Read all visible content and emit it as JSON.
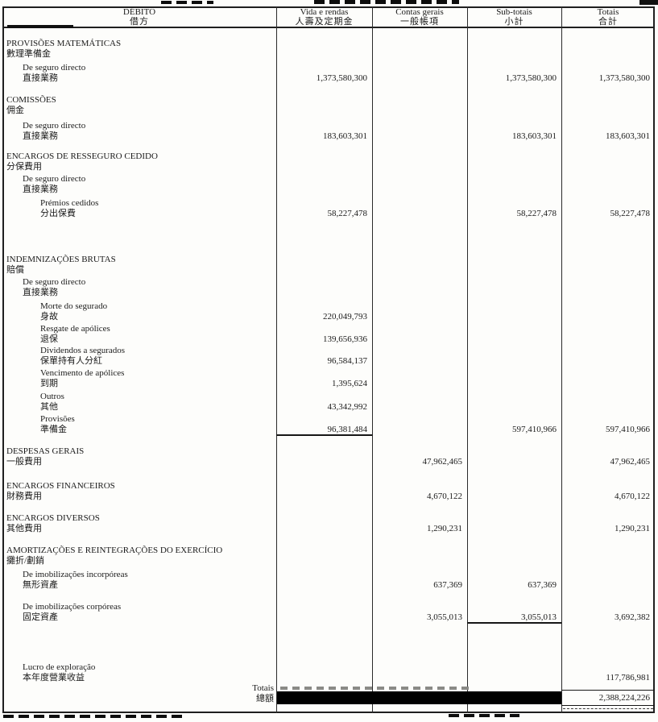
{
  "document": {
    "title": "Conta de exploração - Débito (scanned bilingual insurance account statement)",
    "colors": {
      "ink": "#1b1b1b",
      "redaction": "#000000",
      "paper": "#fdfdfb"
    },
    "header": {
      "col_debit": {
        "pt": "DÉBITO",
        "zh": "借方"
      },
      "columns": [
        {
          "key": "vida",
          "pt": "Vida e rendas",
          "zh": "人壽及定期金"
        },
        {
          "key": "contas",
          "pt": "Contas gerais",
          "zh": "一般帳項"
        },
        {
          "key": "sub",
          "pt": "Sub-totais",
          "zh": "小計"
        },
        {
          "key": "total",
          "pt": "Totais",
          "zh": "合計"
        }
      ]
    },
    "rows": [
      {
        "pt": "PROVISÕES MATEMÁTICAS",
        "zh": "數理準備金",
        "level": 0,
        "values": {}
      },
      {
        "pt": "De seguro directo",
        "zh": "直接業務",
        "level": 1,
        "values": {
          "vida": "1,373,580,300",
          "sub": "1,373,580,300",
          "total": "1,373,580,300"
        }
      },
      {
        "pt": "COMISSÕES",
        "zh": "佣金",
        "level": 0,
        "values": {}
      },
      {
        "pt": "De seguro directo",
        "zh": "直接業務",
        "level": 1,
        "values": {
          "vida": "183,603,301",
          "sub": "183,603,301",
          "total": "183,603,301"
        }
      },
      {
        "pt": "ENCARGOS DE RESSEGURO CEDIDO",
        "zh": "分保費用",
        "level": 0,
        "values": {}
      },
      {
        "pt": "De seguro directo",
        "zh": "直接業務",
        "level": 1,
        "values": {}
      },
      {
        "pt": "Prémios cedidos",
        "zh": "分出保費",
        "level": 2,
        "values": {
          "vida": "58,227,478",
          "sub": "58,227,478",
          "total": "58,227,478"
        }
      },
      {
        "pt": "INDEMNIZAÇÕES BRUTAS",
        "zh": "賠償",
        "level": 0,
        "values": {}
      },
      {
        "pt": "De seguro directo",
        "zh": "直接業務",
        "level": 1,
        "values": {}
      },
      {
        "pt": "Morte do segurado",
        "zh": "身故",
        "level": 2,
        "values": {
          "vida": "220,049,793"
        }
      },
      {
        "pt": "Resgate de apólices",
        "zh": "退保",
        "level": 2,
        "values": {
          "vida": "139,656,936"
        }
      },
      {
        "pt": "Dividendos a segurados",
        "zh": "保單持有人分紅",
        "level": 2,
        "values": {
          "vida": "96,584,137"
        }
      },
      {
        "pt": "Vencimento de apólices",
        "zh": "到期",
        "level": 2,
        "values": {
          "vida": "1,395,624"
        }
      },
      {
        "pt": "Outros",
        "zh": "其他",
        "level": 2,
        "values": {
          "vida": "43,342,992"
        }
      },
      {
        "pt": "Provisões",
        "zh": "準備金",
        "level": 2,
        "rule_below": "vida",
        "values": {
          "vida": "96,381,484",
          "sub": "597,410,966",
          "total": "597,410,966"
        }
      },
      {
        "pt": "DESPESAS GERAIS",
        "zh": "一般費用",
        "level": 0,
        "values": {
          "contas": "47,962,465",
          "total": "47,962,465"
        }
      },
      {
        "pt": "ENCARGOS FINANCEIROS",
        "zh": "財務費用",
        "level": 0,
        "values": {
          "contas": "4,670,122",
          "total": "4,670,122"
        }
      },
      {
        "pt": "ENCARGOS DIVERSOS",
        "zh": "其他費用",
        "level": 0,
        "values": {
          "contas": "1,290,231",
          "total": "1,290,231"
        }
      },
      {
        "pt": "AMORTIZAÇÕES E REINTEGRAÇÕES DO EXERCÍCIO",
        "zh": "攤折/劃銷",
        "level": 0,
        "values": {}
      },
      {
        "pt": "De imobilizações incorpóreas",
        "zh": "無形資產",
        "level": 1,
        "values": {
          "contas": "637,369",
          "sub": "637,369"
        }
      },
      {
        "pt": "De imobilizações corpóreas",
        "zh": "固定資產",
        "level": 1,
        "rule_below": "sub",
        "values": {
          "contas": "3,055,013",
          "sub": "3,055,013",
          "total": "3,692,382"
        }
      },
      {
        "pt": "Lucro de exploração",
        "zh": "本年度營業收益",
        "level": 1,
        "values": {
          "total": "117,786,981"
        }
      }
    ],
    "totals_row": {
      "pt": "Totais",
      "zh": "總額",
      "redacted_columns": [
        "vida",
        "contas",
        "sub"
      ],
      "total": "2,388,224,226"
    }
  }
}
